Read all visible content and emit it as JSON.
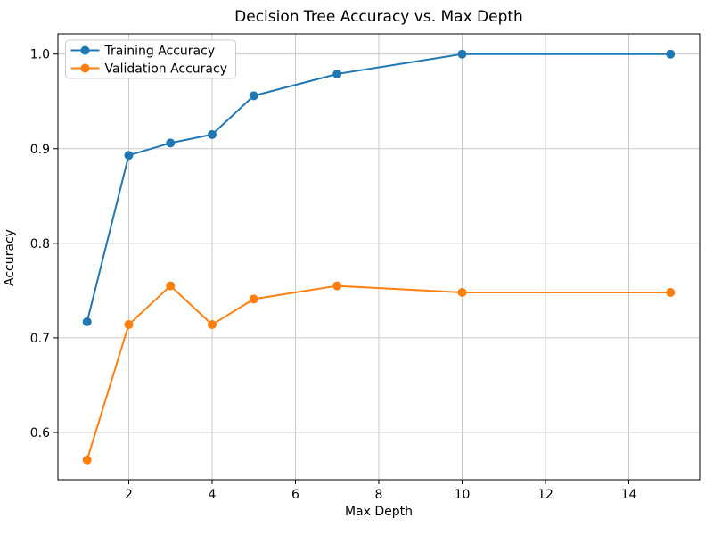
{
  "chart_data": {
    "type": "line",
    "title": "Decision Tree Accuracy vs. Max Depth",
    "xlabel": "Max Depth",
    "ylabel": "Accuracy",
    "x": [
      1,
      2,
      3,
      4,
      5,
      7,
      10,
      15
    ],
    "series": [
      {
        "name": "Training Accuracy",
        "color": "#1f77b4",
        "values": [
          0.717,
          0.893,
          0.906,
          0.915,
          0.956,
          0.979,
          1.0,
          1.0
        ]
      },
      {
        "name": "Validation Accuracy",
        "color": "#ff7f0e",
        "values": [
          0.571,
          0.714,
          0.755,
          0.714,
          0.741,
          0.755,
          0.748,
          0.748
        ]
      }
    ],
    "xlim": [
      0.3,
      15.7
    ],
    "ylim": [
      0.55,
      1.0214
    ],
    "xticks": [
      2,
      4,
      6,
      8,
      10,
      12,
      14
    ],
    "yticks": [
      0.6,
      0.7,
      0.8,
      0.9,
      1.0
    ],
    "grid": true,
    "legend_position": "upper left",
    "colors": {
      "background": "#ffffff",
      "grid": "#c9c9c9",
      "spine": "#000000",
      "tick_label": "#000000",
      "legend_border": "#cccccc",
      "legend_background": "#ffffff"
    }
  }
}
